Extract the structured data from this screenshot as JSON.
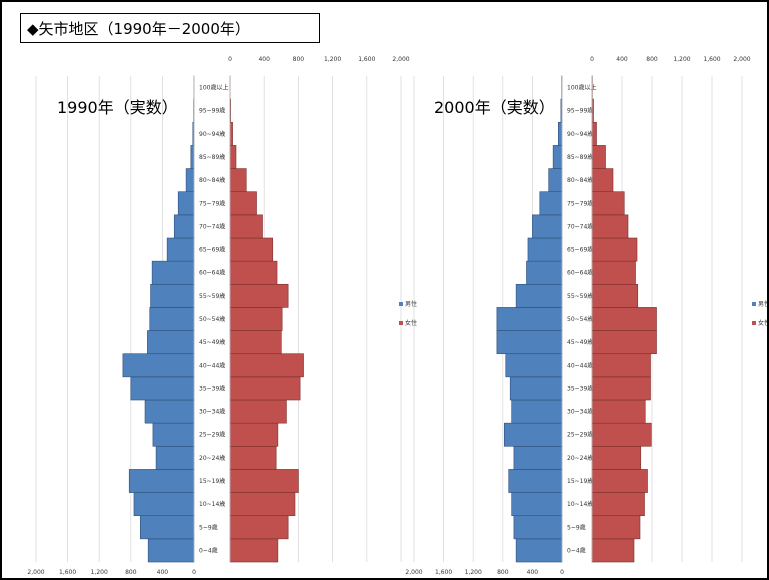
{
  "page": {
    "title": "◆矢市地区（1990年－2000年）"
  },
  "chart_data": [
    {
      "type": "bar",
      "subtype": "population-pyramid",
      "annotation": "1990年（実数）",
      "categories": [
        "0~4歳",
        "5~9歳",
        "10~14歳",
        "15~19歳",
        "20~24歳",
        "25~29歳",
        "30~34歳",
        "35~39歳",
        "40~44歳",
        "45~49歳",
        "50~54歳",
        "55~59歳",
        "60~64歳",
        "65~69歳",
        "70~74歳",
        "75~79歳",
        "80~84歳",
        "85~89歳",
        "90~94歳",
        "95~99歳",
        "100歳以上"
      ],
      "series": [
        {
          "name": "男性",
          "color": "#4f81bd",
          "values": [
            580,
            680,
            760,
            820,
            480,
            520,
            620,
            800,
            900,
            590,
            560,
            550,
            530,
            340,
            250,
            200,
            100,
            40,
            15,
            5,
            2
          ]
        },
        {
          "name": "女性",
          "color": "#c0504d",
          "values": [
            560,
            680,
            760,
            800,
            540,
            560,
            660,
            820,
            860,
            600,
            610,
            680,
            550,
            500,
            380,
            310,
            190,
            70,
            30,
            8,
            2
          ]
        }
      ],
      "xlim": [
        -2000,
        2000
      ],
      "top_ticks": [
        "0",
        "400",
        "800",
        "1,200",
        "1,600",
        "2,000"
      ],
      "bottom_ticks": [
        "2,000",
        "1,600",
        "1,200",
        "800",
        "400",
        "0"
      ],
      "legend_position": "right"
    },
    {
      "type": "bar",
      "subtype": "population-pyramid",
      "annotation": "2000年（実数）",
      "categories": [
        "0~4歳",
        "5~9歳",
        "10~14歳",
        "15~19歳",
        "20~24歳",
        "25~29歳",
        "30~34歳",
        "35~39歳",
        "40~44歳",
        "45~49歳",
        "50~54歳",
        "55~59歳",
        "60~64歳",
        "65~69歳",
        "70~74歳",
        "75~79歳",
        "80~84歳",
        "85~89歳",
        "90~94歳",
        "95~99歳",
        "100歳以上"
      ],
      "series": [
        {
          "name": "男性",
          "color": "#4f81bd",
          "values": [
            620,
            650,
            680,
            720,
            650,
            780,
            680,
            700,
            760,
            880,
            880,
            620,
            480,
            460,
            400,
            300,
            180,
            120,
            50,
            15,
            5
          ]
        },
        {
          "name": "女性",
          "color": "#c0504d",
          "values": [
            560,
            640,
            700,
            740,
            650,
            790,
            710,
            780,
            780,
            860,
            860,
            610,
            580,
            600,
            480,
            430,
            280,
            180,
            60,
            20,
            5
          ]
        }
      ],
      "xlim": [
        -2000,
        2000
      ],
      "top_ticks": [
        "0",
        "400",
        "800",
        "1,200",
        "1,600",
        "2,000"
      ],
      "bottom_ticks": [
        "2,000",
        "1,600",
        "1,200",
        "800",
        "400",
        "0"
      ],
      "legend_position": "right"
    }
  ]
}
